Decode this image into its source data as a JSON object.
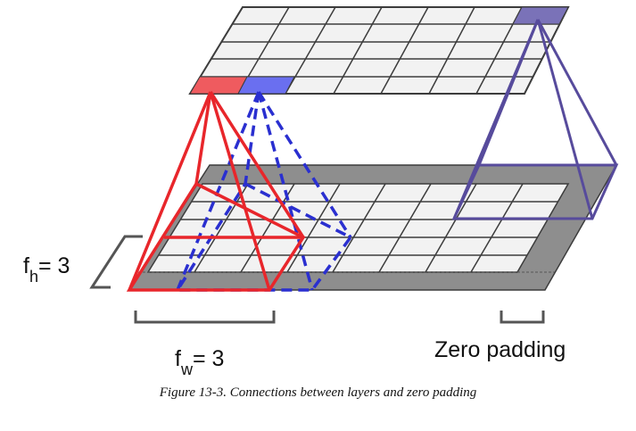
{
  "labels": {
    "fh_main": "f",
    "fh_sub": "h",
    "fh_value": "= 3",
    "fw_main": "f",
    "fw_sub": "w",
    "fw_value": "= 3",
    "zero_padding": "Zero padding"
  },
  "caption": "Figure 13-3. Connections between layers and zero padding",
  "colors": {
    "red": "#e8262b",
    "blue": "#2a2fd0",
    "purple": "#574b9c",
    "grid_line": "#3c3c3c",
    "cell_fill": "#f2f2f2",
    "padding_fill": "#8e8e8e"
  }
}
